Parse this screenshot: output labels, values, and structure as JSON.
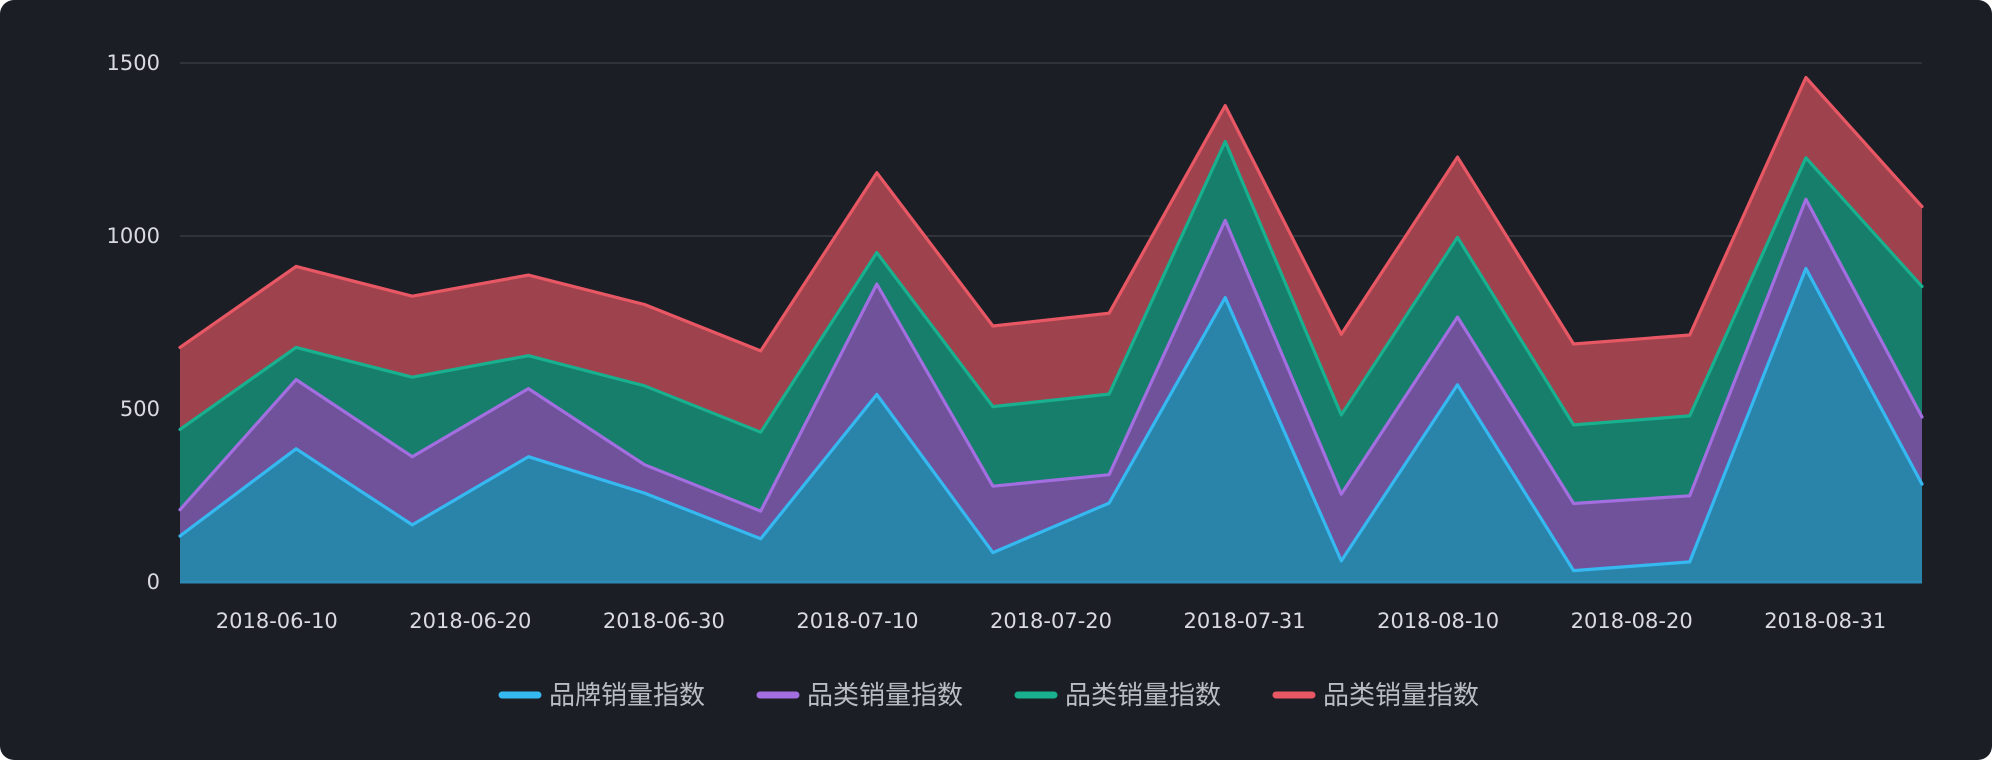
{
  "chart_data": {
    "type": "area",
    "stacked": true,
    "grid": true,
    "legend_position": "bottom-center",
    "y_ticks": [
      0,
      500,
      1000,
      1500
    ],
    "ylim": [
      0,
      1500
    ],
    "x_tick_labels": [
      "2018-06-10",
      "2018-06-20",
      "2018-06-30",
      "2018-07-10",
      "2018-07-20",
      "2018-07-31",
      "2018-08-10",
      "2018-08-20",
      "2018-08-31"
    ],
    "series": [
      {
        "name": "品牌销量指数",
        "color": "#35b9f0",
        "fill": "#2a84aa",
        "values": [
          133,
          385,
          165,
          362,
          257,
          125,
          542,
          85,
          228,
          822,
          61,
          570,
          33,
          58,
          906,
          283
        ]
      },
      {
        "name": "品类销量指数",
        "color": "#a36ee0",
        "fill": "#70529b",
        "values": [
          76,
          200,
          197,
          197,
          82,
          80,
          319,
          192,
          82,
          223,
          193,
          196,
          194,
          191,
          200,
          194
        ]
      },
      {
        "name": "品类销量指数",
        "color": "#18b08f",
        "fill": "#177e6c",
        "values": [
          232,
          93,
          230,
          95,
          228,
          228,
          91,
          230,
          233,
          228,
          229,
          230,
          227,
          231,
          120,
          377
        ]
      },
      {
        "name": "品类销量指数",
        "color": "#e85764",
        "fill": "#9e434d",
        "values": [
          237,
          234,
          234,
          233,
          235,
          235,
          231,
          233,
          234,
          104,
          233,
          232,
          234,
          234,
          232,
          231
        ]
      }
    ]
  }
}
